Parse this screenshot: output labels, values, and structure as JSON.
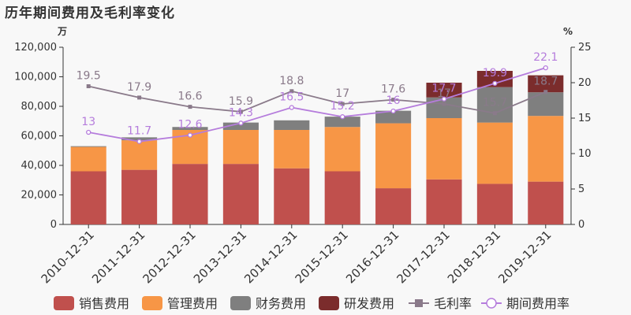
{
  "title": "历年期间费用及毛利率变化",
  "chart_data": {
    "type": "bar",
    "stacked": true,
    "categories": [
      "2010-12-31",
      "2011-12-31",
      "2012-12-31",
      "2013-12-31",
      "2014-12-31",
      "2015-12-31",
      "2016-12-31",
      "2017-12-31",
      "2018-12-31",
      "2019-12-31"
    ],
    "y_left_unit": "万",
    "y_right_unit": "%",
    "ylim_left": [
      0,
      120000
    ],
    "ylim_right": [
      0,
      25
    ],
    "left_ticks": [
      "0",
      "20,000",
      "40,000",
      "60,000",
      "80,000",
      "100,000",
      "120,000"
    ],
    "right_ticks": [
      "0",
      "5",
      "10",
      "15",
      "20",
      "25"
    ],
    "series": [
      {
        "name": "销售费用",
        "axis": "left",
        "type": "bar",
        "color": "#c0504d",
        "values": [
          36000,
          37000,
          41000,
          41000,
          38000,
          36000,
          24500,
          30500,
          27500,
          29000
        ]
      },
      {
        "name": "管理费用",
        "axis": "left",
        "type": "bar",
        "color": "#f79646",
        "values": [
          16500,
          20000,
          23000,
          23000,
          26000,
          30000,
          44000,
          41500,
          41500,
          44500
        ]
      },
      {
        "name": "财务费用",
        "axis": "left",
        "type": "bar",
        "color": "#7f7f7f",
        "values": [
          500,
          2000,
          2000,
          5000,
          6500,
          7000,
          8500,
          14000,
          24000,
          16000
        ]
      },
      {
        "name": "研发费用",
        "axis": "left",
        "type": "bar",
        "color": "#7b2c2c",
        "values": [
          0,
          0,
          0,
          0,
          0,
          0,
          0,
          10000,
          11000,
          11500
        ]
      },
      {
        "name": "毛利率",
        "axis": "right",
        "type": "line",
        "color": "#8a7a8a",
        "marker": "square",
        "values": [
          19.5,
          17.9,
          16.6,
          15.9,
          18.8,
          17,
          17.6,
          17,
          15.7,
          18.7
        ],
        "labels": [
          "19.5",
          "17.9",
          "16.6",
          "15.9",
          "18.8",
          "17",
          "17.6",
          "17",
          "15.7",
          "18.7"
        ]
      },
      {
        "name": "期间费用率",
        "axis": "right",
        "type": "line",
        "color": "#b57cdc",
        "marker": "circle",
        "values": [
          13,
          11.7,
          12.6,
          14.3,
          16.5,
          15.2,
          16,
          17.7,
          19.9,
          22.1
        ],
        "labels": [
          "13",
          "11.7",
          "12.6",
          "14.3",
          "16.5",
          "15.2",
          "16",
          "17.7",
          "19.9",
          "22.1"
        ]
      }
    ]
  }
}
